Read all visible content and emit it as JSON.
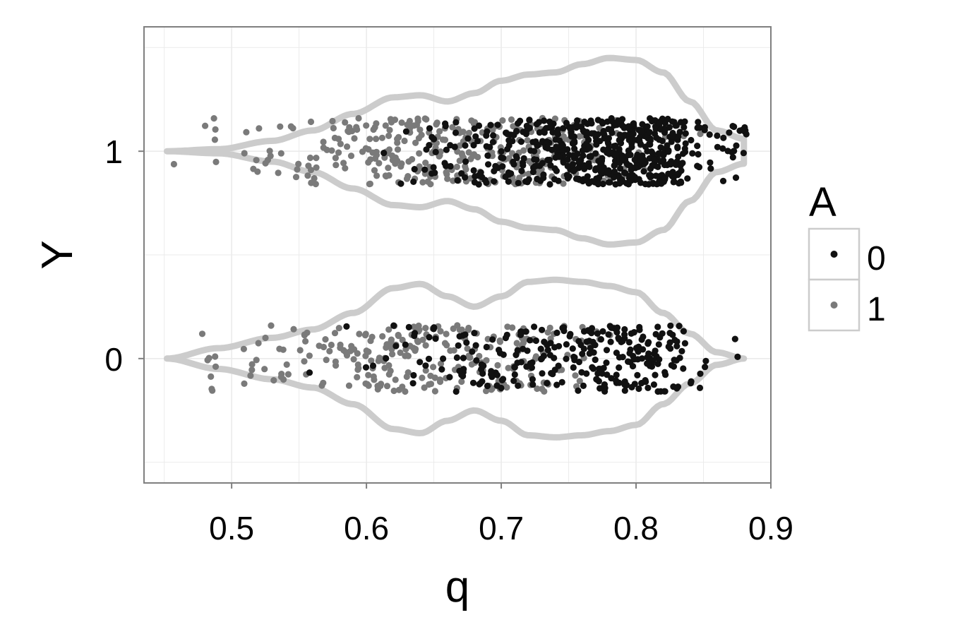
{
  "chart_data": {
    "type": "scatter",
    "title": "",
    "xlabel": "q",
    "ylabel": "Y",
    "xlim": [
      0.435,
      0.9
    ],
    "ylim": [
      -0.6,
      1.6
    ],
    "x_ticks": [
      0.5,
      0.6,
      0.7,
      0.8,
      0.9
    ],
    "x_tick_labels": [
      "0.5",
      "0.6",
      "0.7",
      "0.8",
      "0.9"
    ],
    "y_ticks": [
      0,
      1
    ],
    "y_tick_labels": [
      "0",
      "1"
    ],
    "grid": true,
    "legend": {
      "title": "A",
      "position": "right",
      "entries": [
        {
          "label": "0",
          "color": "#111111"
        },
        {
          "label": "1",
          "color": "#7a7a7a"
        }
      ]
    },
    "colors": {
      "A0": "#111111",
      "A1": "#7a7a7a",
      "violin": "#cccccc",
      "panel_border": "#7f7f7f",
      "grid": "#ebebeb"
    },
    "jitter_height": 0.16,
    "density_bins": [
      0.455,
      0.47,
      0.485,
      0.5,
      0.515,
      0.53,
      0.545,
      0.56,
      0.575,
      0.59,
      0.605,
      0.62,
      0.635,
      0.65,
      0.665,
      0.68,
      0.695,
      0.71,
      0.725,
      0.74,
      0.755,
      0.77,
      0.785,
      0.8,
      0.815,
      0.83,
      0.845,
      0.86,
      0.875
    ],
    "series": [
      {
        "group": "Y=1",
        "y": 1,
        "violin": {
          "q": [
            0.452,
            0.49,
            0.53,
            0.56,
            0.59,
            0.62,
            0.64,
            0.66,
            0.68,
            0.7,
            0.72,
            0.74,
            0.76,
            0.78,
            0.8,
            0.82,
            0.84,
            0.86,
            0.88
          ],
          "half_width": [
            0.0,
            0.01,
            0.05,
            0.1,
            0.18,
            0.26,
            0.27,
            0.24,
            0.28,
            0.34,
            0.37,
            0.38,
            0.42,
            0.45,
            0.44,
            0.38,
            0.24,
            0.1,
            0.06
          ]
        },
        "A0_counts": [
          0,
          0,
          0,
          0,
          0,
          0,
          0,
          0,
          0,
          0,
          0,
          2,
          3,
          10,
          12,
          16,
          20,
          28,
          36,
          42,
          50,
          60,
          70,
          80,
          72,
          50,
          12,
          8,
          16
        ],
        "A1_counts": [
          1,
          0,
          5,
          0,
          6,
          7,
          5,
          10,
          12,
          14,
          20,
          28,
          25,
          26,
          26,
          22,
          24,
          26,
          26,
          18,
          15,
          12,
          8,
          6,
          4,
          2,
          1,
          0,
          0
        ]
      },
      {
        "group": "Y=0",
        "y": 0,
        "violin": {
          "q": [
            0.452,
            0.49,
            0.53,
            0.56,
            0.59,
            0.62,
            0.64,
            0.66,
            0.68,
            0.7,
            0.72,
            0.74,
            0.76,
            0.78,
            0.8,
            0.82,
            0.84,
            0.86,
            0.88
          ],
          "half_width": [
            0.0,
            0.05,
            0.1,
            0.14,
            0.22,
            0.34,
            0.36,
            0.3,
            0.25,
            0.3,
            0.37,
            0.38,
            0.37,
            0.35,
            0.32,
            0.22,
            0.12,
            0.03,
            0.0
          ]
        },
        "A0_counts": [
          0,
          0,
          0,
          0,
          0,
          0,
          0,
          1,
          0,
          1,
          2,
          3,
          7,
          8,
          12,
          14,
          15,
          16,
          18,
          18,
          18,
          30,
          30,
          32,
          30,
          22,
          6,
          0,
          2
        ],
        "A1_counts": [
          0,
          0,
          8,
          0,
          7,
          7,
          6,
          9,
          12,
          14,
          22,
          26,
          22,
          18,
          16,
          16,
          16,
          18,
          14,
          10,
          8,
          4,
          2,
          0,
          0,
          0,
          0,
          0,
          0
        ]
      }
    ]
  }
}
